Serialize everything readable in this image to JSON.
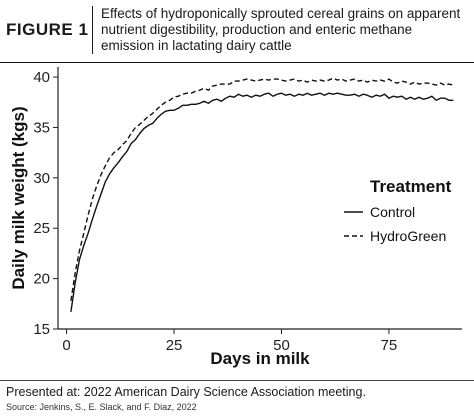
{
  "figure_label": "FIGURE 1",
  "figure_title": "Effects of hydroponically sprouted cereal grains on apparent nutrient digestibility, production and enteric methane emission in lactating dairy cattle",
  "footer": {
    "presented": "Presented at: 2022 American Dairy Science Association meeting.",
    "source": "Source: Jenkins, S., E. Slack, and F. Diaz, 2022"
  },
  "chart_data": {
    "type": "line",
    "xlabel": "Days in milk",
    "ylabel": "Daily milk weight (kgs)",
    "xlim": [
      -2,
      92
    ],
    "ylim": [
      15,
      41
    ],
    "xticks": [
      0,
      25,
      50,
      75
    ],
    "yticks": [
      15,
      20,
      25,
      30,
      35,
      40
    ],
    "grid": false,
    "legend_title": "Treatment",
    "legend_position": "right",
    "series": [
      {
        "name": "Control",
        "dash": "solid",
        "x": [
          1,
          2,
          3,
          4,
          5,
          6,
          7,
          8,
          9,
          10,
          11,
          12,
          13,
          14,
          15,
          16,
          17,
          18,
          19,
          20,
          21,
          22,
          23,
          24,
          25,
          26,
          27,
          28,
          29,
          30,
          31,
          32,
          33,
          34,
          35,
          36,
          37,
          38,
          39,
          40,
          41,
          42,
          43,
          44,
          45,
          46,
          47,
          48,
          49,
          50,
          51,
          52,
          53,
          54,
          55,
          56,
          57,
          58,
          59,
          60,
          61,
          62,
          63,
          64,
          65,
          66,
          67,
          68,
          69,
          70,
          71,
          72,
          73,
          74,
          75,
          76,
          77,
          78,
          79,
          80,
          81,
          82,
          83,
          84,
          85,
          86,
          87,
          88,
          89,
          90
        ],
        "y": [
          16.7,
          19.6,
          21.9,
          23.3,
          24.5,
          25.9,
          27.2,
          28.4,
          29.6,
          30.4,
          31.0,
          31.5,
          32.1,
          32.6,
          33.4,
          33.8,
          34.4,
          34.9,
          35.2,
          35.4,
          35.9,
          36.3,
          36.6,
          36.7,
          36.7,
          36.9,
          37.2,
          37.2,
          37.3,
          37.3,
          37.4,
          37.6,
          37.4,
          37.7,
          37.8,
          37.6,
          37.9,
          38.1,
          38.0,
          38.3,
          38.1,
          38.2,
          38.0,
          38.2,
          38.1,
          38.3,
          38.4,
          38.1,
          38.3,
          38.4,
          38.2,
          38.3,
          38.1,
          38.3,
          38.2,
          38.4,
          38.2,
          38.3,
          38.4,
          38.2,
          38.4,
          38.3,
          38.4,
          38.3,
          38.2,
          38.2,
          38.3,
          38.1,
          38.3,
          38.2,
          38.0,
          38.2,
          38.1,
          38.3,
          37.9,
          38.1,
          38.0,
          38.1,
          37.8,
          38.0,
          37.8,
          38.0,
          37.8,
          37.9,
          38.1,
          37.7,
          37.9,
          37.9,
          37.7,
          37.7
        ]
      },
      {
        "name": "HydroGreen",
        "dash": "dashed",
        "x": [
          1,
          2,
          3,
          4,
          5,
          6,
          7,
          8,
          9,
          10,
          11,
          12,
          13,
          14,
          15,
          16,
          17,
          18,
          19,
          20,
          21,
          22,
          23,
          24,
          25,
          26,
          27,
          28,
          29,
          30,
          31,
          32,
          33,
          34,
          35,
          36,
          37,
          38,
          39,
          40,
          41,
          42,
          43,
          44,
          45,
          46,
          47,
          48,
          49,
          50,
          51,
          52,
          53,
          54,
          55,
          56,
          57,
          58,
          59,
          60,
          61,
          62,
          63,
          64,
          65,
          66,
          67,
          68,
          69,
          70,
          71,
          72,
          73,
          74,
          75,
          76,
          77,
          78,
          79,
          80,
          81,
          82,
          83,
          84,
          85,
          86,
          87,
          88,
          89,
          90
        ],
        "y": [
          17.8,
          20.6,
          22.8,
          24.5,
          26.3,
          27.9,
          29.2,
          30.3,
          31.2,
          32.0,
          32.5,
          32.8,
          33.3,
          33.7,
          34.4,
          35.0,
          35.3,
          35.7,
          36.1,
          36.4,
          36.8,
          37.2,
          37.5,
          37.7,
          38.0,
          38.1,
          38.3,
          38.4,
          38.4,
          38.6,
          38.7,
          38.9,
          38.7,
          39.1,
          39.2,
          39.3,
          39.3,
          39.3,
          39.6,
          39.6,
          39.7,
          39.8,
          39.7,
          39.6,
          39.7,
          39.8,
          39.7,
          39.8,
          39.8,
          39.7,
          39.6,
          39.7,
          39.8,
          39.6,
          39.7,
          39.5,
          39.7,
          39.6,
          39.7,
          39.6,
          39.7,
          39.9,
          39.7,
          39.8,
          39.6,
          39.7,
          39.8,
          39.6,
          39.7,
          39.5,
          39.7,
          39.6,
          39.7,
          39.6,
          39.8,
          39.5,
          39.4,
          39.6,
          39.5,
          39.3,
          39.5,
          39.3,
          39.4,
          39.4,
          39.3,
          39.2,
          39.4,
          39.2,
          39.3,
          39.2
        ]
      }
    ]
  }
}
